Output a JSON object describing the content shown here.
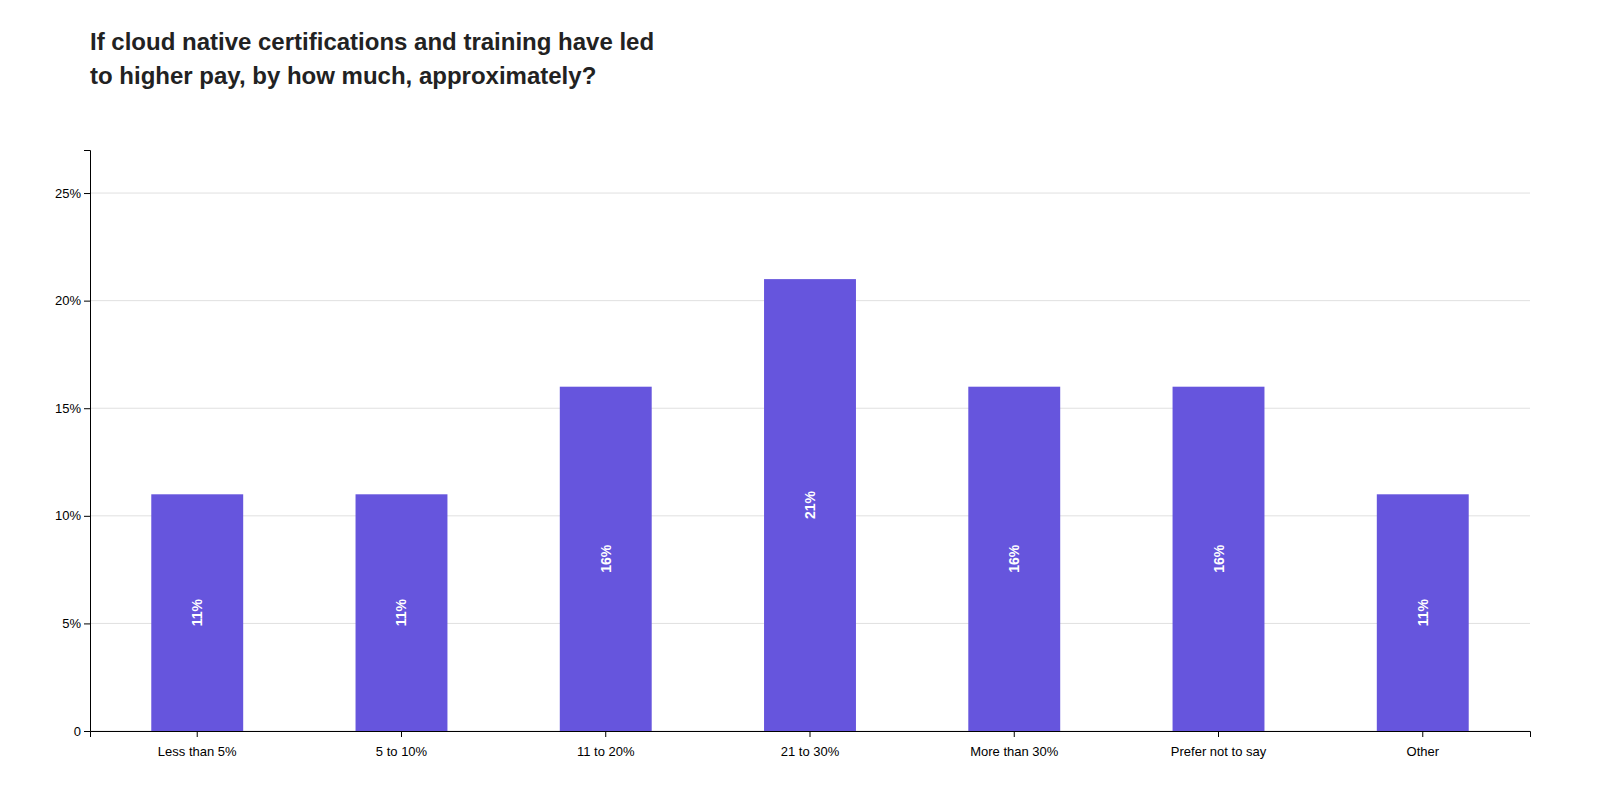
{
  "chart_data": {
    "type": "bar",
    "title": "If cloud native certifications and training have led\nto higher pay, by how much, approximately?",
    "categories": [
      "Less than 5%",
      "5 to 10%",
      "11 to 20%",
      "21 to 30%",
      "More than 30%",
      "Prefer not to say",
      "Other"
    ],
    "values": [
      11,
      11,
      16,
      21,
      16,
      16,
      11
    ],
    "value_labels": [
      "11%",
      "11%",
      "16%",
      "21%",
      "16%",
      "16%",
      "11%"
    ],
    "data_labels": true,
    "color": "#6655dd",
    "ylim": [
      0,
      27
    ],
    "yticks": [
      0,
      {
        "value": 5,
        "label": "5%"
      },
      {
        "value": 10,
        "label": "10%"
      },
      {
        "value": 15,
        "label": "15%"
      },
      {
        "value": 20,
        "label": "20%"
      },
      {
        "value": 25,
        "label": "25%"
      }
    ],
    "grid": true
  }
}
